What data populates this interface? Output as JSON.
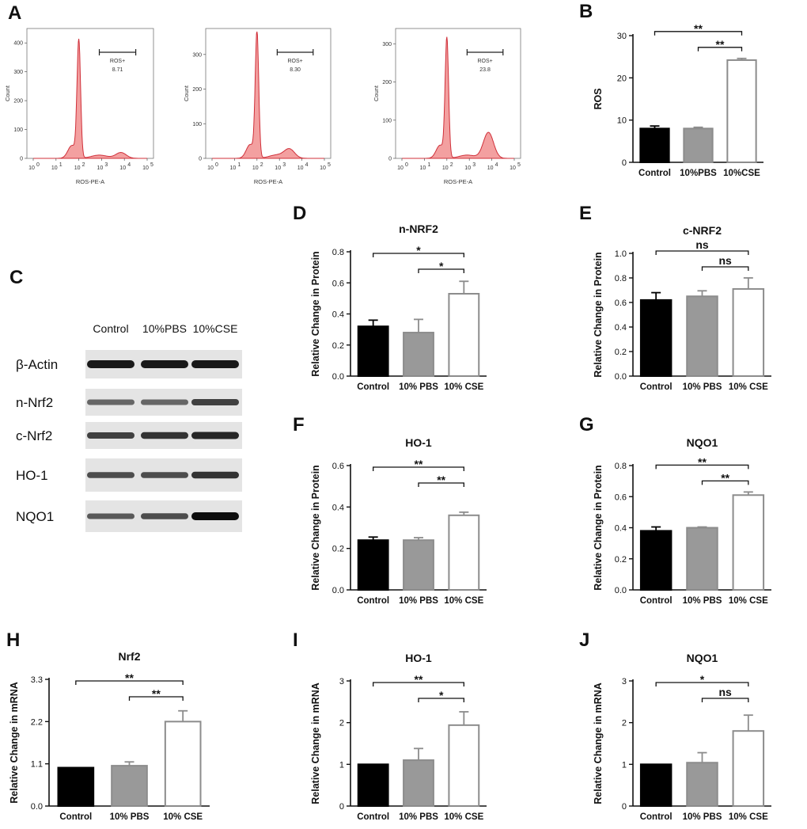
{
  "flow_cytometry": {
    "panel_label": "A",
    "plots": [
      {
        "gate_label": "ROS+",
        "gate_value": "8.71",
        "ymax": 450,
        "yticks": [
          "0",
          "100",
          "200",
          "300",
          "400"
        ],
        "peak2": 0.05,
        "peak2_pos": 3.85
      },
      {
        "gate_label": "ROS+",
        "gate_value": "8.30",
        "ymax": 375,
        "yticks": [
          "0",
          "100",
          "200",
          "300"
        ],
        "peak2": 0.07,
        "peak2_pos": 3.45
      },
      {
        "gate_label": "ROS+",
        "gate_value": "23.8",
        "ymax": 340,
        "yticks": [
          "0",
          "100",
          "200",
          "300"
        ],
        "peak2": 0.22,
        "peak2_pos": 3.85
      }
    ],
    "xlabel": "ROS-PE-A",
    "ylabel": "Count",
    "xticks": [
      "10",
      "10",
      "10",
      "10",
      "10",
      "10"
    ],
    "xtick_exps": [
      "0",
      "1",
      "2",
      "3",
      "4",
      "5"
    ],
    "colors": {
      "fill": "#f3a0a0",
      "line": "#d0303a"
    }
  },
  "western_blot": {
    "panel_label": "C",
    "lanes": [
      "Control",
      "10%PBS",
      "10%CSE"
    ],
    "rows": [
      {
        "label": "β-Actin",
        "intensity": [
          0.9,
          0.9,
          0.9
        ],
        "thickness": [
          1.0,
          1.0,
          1.0
        ]
      },
      {
        "label": "n-Nrf2",
        "intensity": [
          0.6,
          0.6,
          0.75
        ],
        "thickness": [
          0.7,
          0.7,
          0.8
        ]
      },
      {
        "label": "c-Nrf2",
        "intensity": [
          0.75,
          0.8,
          0.85
        ],
        "thickness": [
          0.8,
          0.85,
          0.9
        ]
      },
      {
        "label": "HO-1",
        "intensity": [
          0.7,
          0.7,
          0.8
        ],
        "thickness": [
          0.75,
          0.75,
          0.85
        ]
      },
      {
        "label": "NQO1",
        "intensity": [
          0.65,
          0.7,
          0.95
        ],
        "thickness": [
          0.7,
          0.75,
          1.0
        ]
      }
    ]
  },
  "chart_data": [
    {
      "id": "B",
      "panel_label": "B",
      "type": "bar",
      "title": "",
      "ylabel": "ROS",
      "categories": [
        "Control",
        "10%PBS",
        "10%CSE"
      ],
      "values": [
        8.0,
        8.0,
        24.2
      ],
      "errors": [
        0.6,
        0.3,
        0.4
      ],
      "ylim": [
        0,
        30
      ],
      "yticks": [
        0,
        10,
        20,
        30
      ],
      "tick_labels": [
        "0",
        "10",
        "20",
        "30"
      ],
      "sig": [
        {
          "text": "**",
          "from": 0,
          "to": 2
        },
        {
          "text": "**",
          "from": 1,
          "to": 2
        }
      ]
    },
    {
      "id": "D",
      "panel_label": "D",
      "type": "bar",
      "title": "n-NRF2",
      "ylabel": "Relative Change in Protein",
      "categories": [
        "Control",
        "10% PBS",
        "10% CSE"
      ],
      "values": [
        0.32,
        0.28,
        0.53
      ],
      "errors": [
        0.04,
        0.085,
        0.08
      ],
      "ylim": [
        0,
        0.8
      ],
      "yticks": [
        0,
        0.2,
        0.4,
        0.6,
        0.8
      ],
      "tick_labels": [
        "0.0",
        "0.2",
        "0.4",
        "0.6",
        "0.8"
      ],
      "sig": [
        {
          "text": "*",
          "from": 0,
          "to": 2
        },
        {
          "text": "*",
          "from": 1,
          "to": 2
        }
      ]
    },
    {
      "id": "E",
      "panel_label": "E",
      "type": "bar",
      "title": "c-NRF2",
      "ylabel": "Relative Change in Protein",
      "categories": [
        "Control",
        "10% PBS",
        "10% CSE"
      ],
      "values": [
        0.62,
        0.65,
        0.71
      ],
      "errors": [
        0.06,
        0.045,
        0.09
      ],
      "ylim": [
        0,
        1.0
      ],
      "yticks": [
        0,
        0.2,
        0.4,
        0.6,
        0.8,
        1.0
      ],
      "tick_labels": [
        "0.0",
        "0.2",
        "0.4",
        "0.6",
        "0.8",
        "1.0"
      ],
      "sig": [
        {
          "text": "ns",
          "from": 0,
          "to": 2
        },
        {
          "text": "ns",
          "from": 1,
          "to": 2
        }
      ]
    },
    {
      "id": "F",
      "panel_label": "F",
      "type": "bar",
      "title": "HO-1",
      "ylabel": "Relative Change in Protein",
      "categories": [
        "Control",
        "10% PBS",
        "10% CSE"
      ],
      "values": [
        0.24,
        0.24,
        0.36
      ],
      "errors": [
        0.015,
        0.012,
        0.015
      ],
      "ylim": [
        0,
        0.6
      ],
      "yticks": [
        0,
        0.2,
        0.4,
        0.6
      ],
      "tick_labels": [
        "0.0",
        "0.2",
        "0.4",
        "0.6"
      ],
      "sig": [
        {
          "text": "**",
          "from": 0,
          "to": 2
        },
        {
          "text": "**",
          "from": 1,
          "to": 2
        }
      ]
    },
    {
      "id": "G",
      "panel_label": "G",
      "type": "bar",
      "title": "NQO1",
      "ylabel": "Relative Change in Protein",
      "categories": [
        "Control",
        "10% PBS",
        "10% CSE"
      ],
      "values": [
        0.38,
        0.4,
        0.61
      ],
      "errors": [
        0.025,
        0.005,
        0.02
      ],
      "ylim": [
        0,
        0.8
      ],
      "yticks": [
        0,
        0.2,
        0.4,
        0.6,
        0.8
      ],
      "tick_labels": [
        "0.0",
        "0.2",
        "0.4",
        "0.6",
        "0.8"
      ],
      "sig": [
        {
          "text": "**",
          "from": 0,
          "to": 2
        },
        {
          "text": "**",
          "from": 1,
          "to": 2
        }
      ]
    },
    {
      "id": "H",
      "panel_label": "H",
      "type": "bar",
      "title": "Nrf2",
      "ylabel": "Relative Change in mRNA",
      "categories": [
        "Control",
        "10% PBS",
        "10% CSE"
      ],
      "values": [
        1.0,
        1.05,
        2.2
      ],
      "errors": [
        0.0,
        0.1,
        0.28
      ],
      "ylim": [
        0,
        3.3
      ],
      "yticks": [
        0,
        1.1,
        2.2,
        3.3
      ],
      "tick_labels": [
        "0.0",
        "1.1",
        "2.2",
        "3.3"
      ],
      "sig": [
        {
          "text": "**",
          "from": 0,
          "to": 2
        },
        {
          "text": "**",
          "from": 1,
          "to": 2
        }
      ]
    },
    {
      "id": "I",
      "panel_label": "I",
      "type": "bar",
      "title": "HO-1",
      "ylabel": "Relative Change in mRNA",
      "categories": [
        "Control",
        "10% PBS",
        "10% CSE"
      ],
      "values": [
        1.0,
        1.1,
        1.94
      ],
      "errors": [
        0.0,
        0.28,
        0.32
      ],
      "ylim": [
        0,
        3
      ],
      "yticks": [
        0,
        1,
        2,
        3
      ],
      "tick_labels": [
        "0",
        "1",
        "2",
        "3"
      ],
      "sig": [
        {
          "text": "**",
          "from": 0,
          "to": 2
        },
        {
          "text": "*",
          "from": 1,
          "to": 2
        }
      ]
    },
    {
      "id": "J",
      "panel_label": "J",
      "type": "bar",
      "title": "NQO1",
      "ylabel": "Relative Change in mRNA",
      "categories": [
        "Control",
        "10% PBS",
        "10% CSE"
      ],
      "values": [
        1.0,
        1.04,
        1.8
      ],
      "errors": [
        0.0,
        0.24,
        0.38
      ],
      "ylim": [
        0,
        3
      ],
      "yticks": [
        0,
        1,
        2,
        3
      ],
      "tick_labels": [
        "0",
        "1",
        "2",
        "3"
      ],
      "sig": [
        {
          "text": "*",
          "from": 0,
          "to": 2
        },
        {
          "text": "ns",
          "from": 1,
          "to": 2
        }
      ]
    }
  ],
  "colors": {
    "control": "#000000",
    "pbs": "#999999",
    "pbs_edge": "#8c8c8c",
    "cse": "#ffffff",
    "cse_edge": "#8c8c8c",
    "axis": "#111111"
  }
}
